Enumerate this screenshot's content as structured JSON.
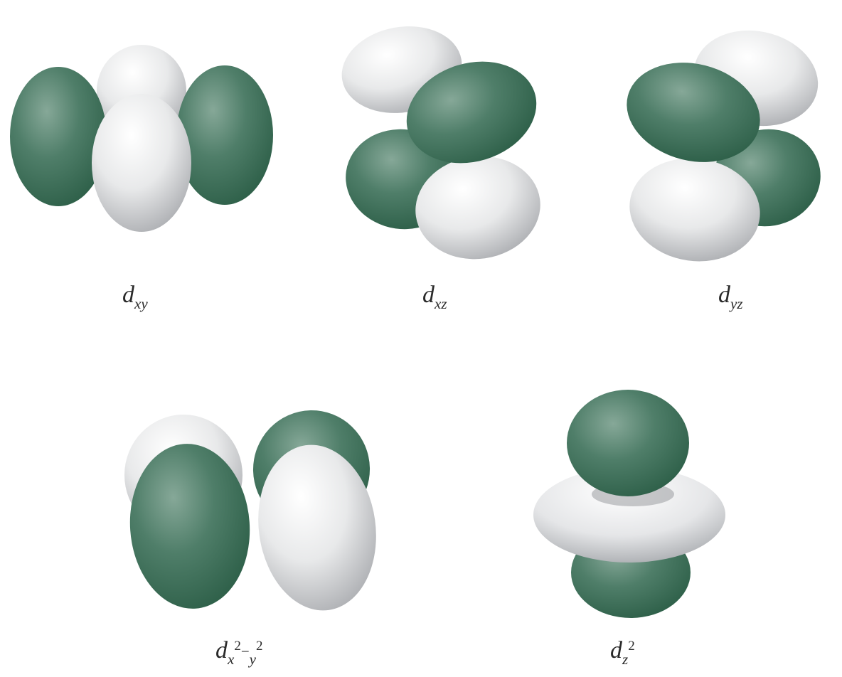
{
  "colors": {
    "green_lobe": "#2f6a52",
    "white_lobe": "#e4e5e7",
    "background": "#ffffff"
  },
  "orbitals": [
    {
      "id": "dxy",
      "symbol": "d",
      "subscript": "xy"
    },
    {
      "id": "dxz",
      "symbol": "d",
      "subscript": "xz"
    },
    {
      "id": "dyz",
      "symbol": "d",
      "subscript": "yz"
    },
    {
      "id": "dx2-y2",
      "symbol": "d",
      "subscript_a": "x",
      "superscript_a": "2",
      "minus": "−",
      "subscript_b": "y",
      "superscript_b": "2"
    },
    {
      "id": "dz2",
      "symbol": "d",
      "subscript": "z",
      "superscript": "2"
    }
  ]
}
